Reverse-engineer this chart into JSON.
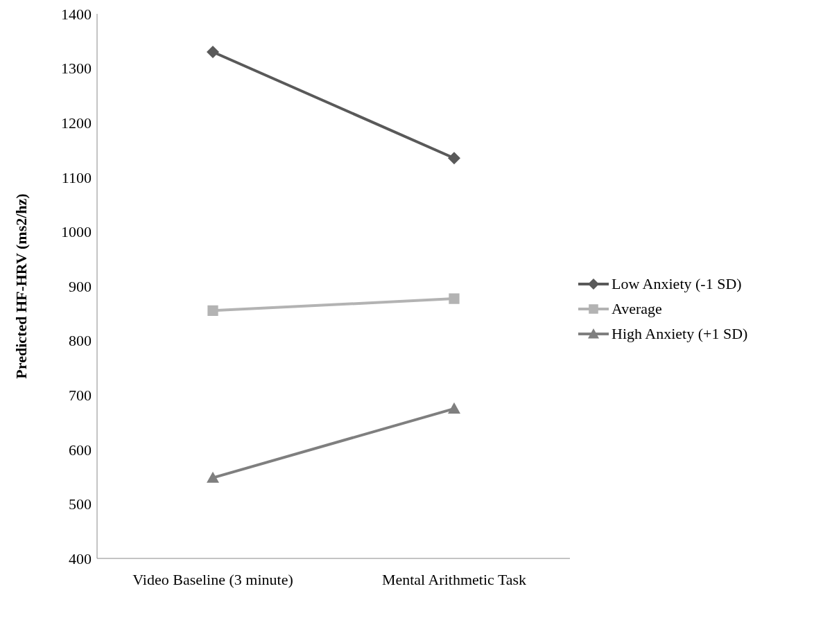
{
  "chart_data": {
    "type": "line",
    "ylabel": "Predicted  HF-HRV (ms2/hz)",
    "categories": [
      "Video Baseline (3 minute)",
      "Mental Arithmetic Task"
    ],
    "ylim": [
      400,
      1400
    ],
    "yticks": [
      400,
      500,
      600,
      700,
      800,
      900,
      1000,
      1100,
      1200,
      1300,
      1400
    ],
    "grid": false,
    "legend": "right",
    "line_style": "solid",
    "series": [
      {
        "name": "Low Anxiety (-1 SD)",
        "color": "#595959",
        "marker": "diamond",
        "values": [
          1330,
          1135
        ]
      },
      {
        "name": "Average",
        "color": "#b3b3b3",
        "marker": "square",
        "values": [
          855,
          877
        ]
      },
      {
        "name": "High Anxiety (+1 SD)",
        "color": "#7f7f7f",
        "marker": "triangle",
        "values": [
          548,
          675
        ]
      }
    ]
  }
}
